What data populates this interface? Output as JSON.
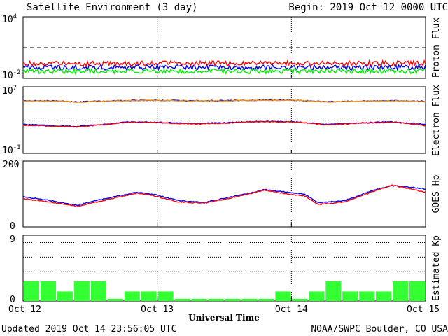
{
  "header": {
    "title": "Satellite Environment (3 day)",
    "begin": "Begin:  2019 Oct 12 0000 UTC"
  },
  "footer": {
    "updated": "Updated 2019 Oct 14 23:56:05 UTC",
    "credit": "NOAA/SWPC Boulder, CO USA"
  },
  "x_axis": {
    "label": "Universal Time",
    "ticks": [
      "Oct 12",
      "Oct 13",
      "Oct 14",
      "Oct 15"
    ],
    "range_days": [
      0,
      3
    ],
    "day_separators": [
      1,
      2
    ]
  },
  "colors": {
    "red": "#ff0000",
    "blue": "#0000ff",
    "green": "#00ee00",
    "orange": "#ff9900",
    "kp_bar": "#33ff33"
  },
  "chart_data": [
    {
      "type": "line",
      "panel": "proton",
      "ylabel": "Proton Flux",
      "yscale": "log",
      "ylim": [
        0.01,
        10000
      ],
      "ytick_labels": [
        {
          "mantissa": "10",
          "exp": "4"
        },
        {
          "mantissa": "10",
          "exp": "-2"
        }
      ],
      "threshold": 10,
      "series": [
        {
          "color": "red",
          "x": [
            0,
            0.5,
            1,
            1.5,
            2,
            2.5,
            3
          ],
          "y": [
            0.3,
            0.28,
            0.3,
            0.29,
            0.3,
            0.29,
            0.3
          ]
        },
        {
          "color": "blue",
          "x": [
            0,
            0.5,
            1,
            1.5,
            2,
            2.5,
            3
          ],
          "y": [
            0.12,
            0.11,
            0.12,
            0.11,
            0.12,
            0.11,
            0.12
          ]
        },
        {
          "color": "green",
          "x": [
            0,
            0.5,
            1,
            1.5,
            2,
            2.5,
            3
          ],
          "y": [
            0.05,
            0.05,
            0.05,
            0.05,
            0.05,
            0.05,
            0.05
          ]
        }
      ]
    },
    {
      "type": "line",
      "panel": "electron",
      "ylabel": "Electron Flux",
      "yscale": "log",
      "ylim": [
        0.1,
        10000000
      ],
      "ytick_labels": [
        {
          "mantissa": "10",
          "exp": "7"
        },
        {
          "mantissa": "10",
          "exp": "-1"
        }
      ],
      "threshold": 1000,
      "series": [
        {
          "color": "blue",
          "x": [
            0,
            0.25,
            0.4,
            0.6,
            0.8,
            1.0,
            1.25,
            1.5,
            1.75,
            2.0,
            2.25,
            2.5,
            2.75,
            3.0
          ],
          "y": [
            220000,
            200000,
            150000,
            190000,
            230000,
            240000,
            210000,
            220000,
            250000,
            260000,
            160000,
            190000,
            210000,
            180000
          ]
        },
        {
          "color": "orange",
          "x": [
            0,
            0.25,
            0.4,
            0.6,
            0.8,
            1.0,
            1.25,
            1.5,
            1.75,
            2.0,
            2.25,
            2.5,
            2.75,
            3.0
          ],
          "y": [
            200000,
            190000,
            140000,
            180000,
            220000,
            230000,
            200000,
            210000,
            240000,
            250000,
            150000,
            180000,
            200000,
            160000
          ]
        },
        {
          "color": "blue",
          "x": [
            0,
            0.25,
            0.4,
            0.6,
            0.8,
            1.0,
            1.25,
            1.5,
            1.75,
            2.0,
            2.25,
            2.5,
            2.75,
            3.0
          ],
          "y": [
            300,
            200,
            170,
            300,
            600,
            550,
            380,
            480,
            700,
            650,
            300,
            450,
            600,
            280
          ]
        },
        {
          "color": "red",
          "x": [
            0,
            0.25,
            0.4,
            0.6,
            0.8,
            1.0,
            1.25,
            1.5,
            1.75,
            2.0,
            2.25,
            2.5,
            2.75,
            3.0
          ],
          "y": [
            250,
            170,
            150,
            270,
            550,
            500,
            340,
            430,
            650,
            600,
            260,
            400,
            550,
            220
          ]
        }
      ]
    },
    {
      "type": "line",
      "panel": "goes_hp",
      "ylabel": "GOES Hp",
      "ylim": [
        0,
        200
      ],
      "ytick_labels": [
        "200",
        "0"
      ],
      "series": [
        {
          "color": "blue",
          "x": [
            0,
            0.2,
            0.4,
            0.6,
            0.85,
            1.0,
            1.15,
            1.35,
            1.6,
            1.8,
            2.0,
            2.1,
            2.2,
            2.4,
            2.6,
            2.75,
            2.85,
            3.0
          ],
          "y": [
            92,
            80,
            65,
            85,
            105,
            97,
            80,
            74,
            95,
            113,
            104,
            100,
            73,
            80,
            110,
            125,
            122,
            115
          ]
        },
        {
          "color": "red",
          "x": [
            0,
            0.2,
            0.4,
            0.6,
            0.85,
            1.0,
            1.15,
            1.35,
            1.6,
            1.8,
            2.0,
            2.1,
            2.2,
            2.4,
            2.6,
            2.75,
            2.85,
            3.0
          ],
          "y": [
            86,
            75,
            62,
            80,
            103,
            92,
            76,
            72,
            92,
            112,
            98,
            94,
            68,
            76,
            106,
            127,
            118,
            105
          ]
        }
      ]
    },
    {
      "type": "bar",
      "panel": "kp",
      "ylabel": "Estimated Kp",
      "ylim": [
        0,
        9
      ],
      "ytick_labels": [
        "9",
        "0"
      ],
      "grid_levels": [
        4,
        6,
        8
      ],
      "bar_width_hours": 3,
      "values": [
        2.7,
        2.7,
        1.3,
        2.7,
        2.7,
        0.3,
        1.3,
        1.3,
        1.3,
        0.3,
        0.3,
        0.3,
        0.3,
        0.3,
        0.3,
        1.3,
        0.3,
        1.3,
        2.7,
        1.3,
        1.3,
        1.3,
        2.7,
        2.7
      ]
    }
  ]
}
